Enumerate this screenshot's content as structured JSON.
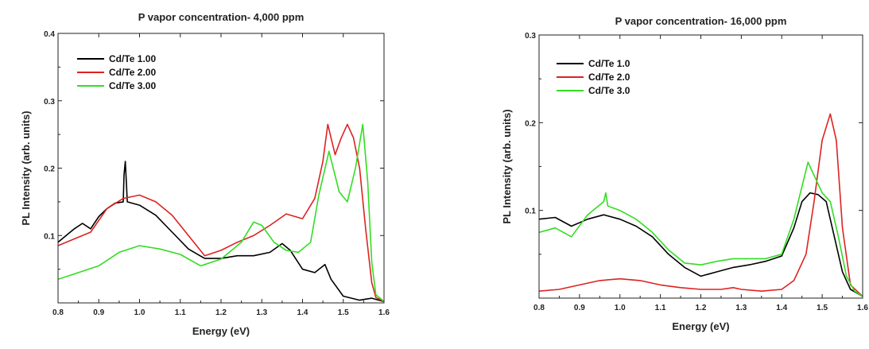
{
  "chart_data": [
    {
      "type": "line",
      "title": "P vapor concentration- 4,000 ppm",
      "xlabel": "Energy (eV)",
      "ylabel": "PL Intensity (arb. units)",
      "xlim": [
        0.8,
        1.6
      ],
      "ylim": [
        0,
        0.4
      ],
      "xticks": [
        "0.8",
        "0.9",
        "1.0",
        "1.1",
        "1.2",
        "1.3",
        "1.4",
        "1.5",
        "1.6"
      ],
      "yticks": [
        "0.1",
        "0.2",
        "0.3",
        "0.4"
      ],
      "legend_position": "top-left",
      "grid": false,
      "series": [
        {
          "name": "Cd/Te 1.00",
          "color": "#000000",
          "x": [
            0.8,
            0.82,
            0.84,
            0.86,
            0.88,
            0.9,
            0.92,
            0.94,
            0.96,
            0.962,
            0.965,
            0.968,
            0.97,
            1.0,
            1.04,
            1.08,
            1.12,
            1.16,
            1.2,
            1.24,
            1.28,
            1.32,
            1.35,
            1.37,
            1.4,
            1.43,
            1.455,
            1.47,
            1.5,
            1.54,
            1.57,
            1.6
          ],
          "y": [
            0.09,
            0.1,
            0.11,
            0.118,
            0.11,
            0.128,
            0.14,
            0.148,
            0.15,
            0.19,
            0.21,
            0.175,
            0.15,
            0.145,
            0.13,
            0.105,
            0.08,
            0.066,
            0.066,
            0.07,
            0.07,
            0.075,
            0.088,
            0.078,
            0.05,
            0.045,
            0.057,
            0.035,
            0.01,
            0.004,
            0.007,
            0.002
          ]
        },
        {
          "name": "Cd/Te 2.00",
          "color": "#dd2222",
          "x": [
            0.8,
            0.84,
            0.88,
            0.92,
            0.96,
            1.0,
            1.04,
            1.08,
            1.12,
            1.16,
            1.2,
            1.24,
            1.28,
            1.32,
            1.36,
            1.4,
            1.43,
            1.45,
            1.462,
            1.48,
            1.495,
            1.51,
            1.525,
            1.54,
            1.555,
            1.57,
            1.58,
            1.6
          ],
          "y": [
            0.085,
            0.095,
            0.105,
            0.14,
            0.155,
            0.16,
            0.15,
            0.13,
            0.1,
            0.07,
            0.078,
            0.09,
            0.1,
            0.115,
            0.132,
            0.125,
            0.155,
            0.21,
            0.265,
            0.22,
            0.245,
            0.265,
            0.245,
            0.2,
            0.11,
            0.03,
            0.008,
            0.002
          ]
        },
        {
          "name": "Cd/Te 3.00",
          "color": "#33dd22",
          "x": [
            0.8,
            0.85,
            0.9,
            0.95,
            1.0,
            1.05,
            1.1,
            1.15,
            1.2,
            1.25,
            1.28,
            1.3,
            1.33,
            1.36,
            1.39,
            1.42,
            1.44,
            1.465,
            1.49,
            1.51,
            1.53,
            1.548,
            1.56,
            1.57,
            1.58,
            1.6
          ],
          "y": [
            0.035,
            0.045,
            0.055,
            0.075,
            0.085,
            0.08,
            0.072,
            0.055,
            0.065,
            0.09,
            0.12,
            0.115,
            0.09,
            0.078,
            0.075,
            0.09,
            0.16,
            0.225,
            0.165,
            0.15,
            0.2,
            0.265,
            0.18,
            0.06,
            0.012,
            0.002
          ]
        }
      ]
    },
    {
      "type": "line",
      "title": "P vapor concentration- 16,000 ppm",
      "xlabel": "Energy (eV)",
      "ylabel": "PL Intensity (arb. units)",
      "xlim": [
        0.8,
        1.6
      ],
      "ylim": [
        0,
        0.3
      ],
      "xticks": [
        "0.8",
        "0.9",
        "1.0",
        "1.1",
        "1.2",
        "1.3",
        "1.4",
        "1.5",
        "1.6"
      ],
      "yticks": [
        "0.1",
        "0.2",
        "0.3"
      ],
      "legend_position": "top-left",
      "grid": false,
      "series": [
        {
          "name": "Cd/Te 1.0",
          "color": "#000000",
          "x": [
            0.8,
            0.84,
            0.88,
            0.92,
            0.96,
            1.0,
            1.04,
            1.08,
            1.12,
            1.16,
            1.2,
            1.24,
            1.28,
            1.32,
            1.36,
            1.4,
            1.43,
            1.45,
            1.47,
            1.49,
            1.51,
            1.53,
            1.55,
            1.57,
            1.6
          ],
          "y": [
            0.09,
            0.092,
            0.082,
            0.09,
            0.095,
            0.09,
            0.082,
            0.07,
            0.05,
            0.035,
            0.025,
            0.03,
            0.035,
            0.038,
            0.042,
            0.048,
            0.08,
            0.11,
            0.12,
            0.118,
            0.11,
            0.07,
            0.03,
            0.01,
            0.002
          ]
        },
        {
          "name": "Cd/Te 2.0",
          "color": "#dd2222",
          "x": [
            0.8,
            0.85,
            0.9,
            0.95,
            1.0,
            1.05,
            1.1,
            1.15,
            1.2,
            1.25,
            1.28,
            1.3,
            1.35,
            1.4,
            1.43,
            1.46,
            1.48,
            1.5,
            1.52,
            1.535,
            1.55,
            1.57,
            1.6
          ],
          "y": [
            0.008,
            0.01,
            0.015,
            0.02,
            0.022,
            0.02,
            0.015,
            0.012,
            0.01,
            0.01,
            0.012,
            0.01,
            0.008,
            0.01,
            0.02,
            0.05,
            0.11,
            0.18,
            0.21,
            0.18,
            0.08,
            0.015,
            0.002
          ]
        },
        {
          "name": "Cd/Te 3.0",
          "color": "#33dd22",
          "x": [
            0.8,
            0.84,
            0.88,
            0.92,
            0.96,
            0.965,
            0.97,
            1.0,
            1.04,
            1.08,
            1.12,
            1.16,
            1.2,
            1.24,
            1.28,
            1.32,
            1.36,
            1.4,
            1.43,
            1.465,
            1.48,
            1.5,
            1.52,
            1.54,
            1.56,
            1.58,
            1.6
          ],
          "y": [
            0.075,
            0.08,
            0.07,
            0.095,
            0.11,
            0.12,
            0.105,
            0.1,
            0.09,
            0.075,
            0.055,
            0.04,
            0.038,
            0.042,
            0.045,
            0.045,
            0.045,
            0.05,
            0.09,
            0.155,
            0.14,
            0.12,
            0.11,
            0.07,
            0.025,
            0.008,
            0.002
          ]
        }
      ]
    }
  ]
}
